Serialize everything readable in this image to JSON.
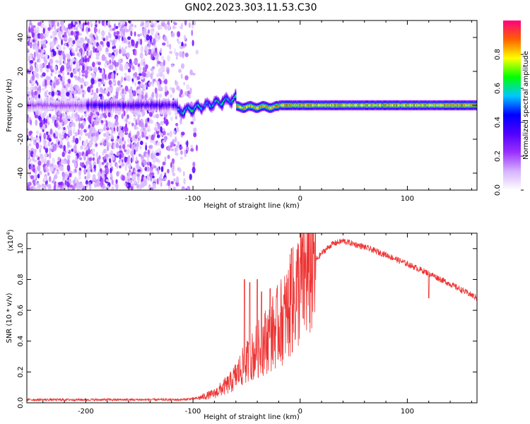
{
  "title": "GN02.2023.303.11.53.C30",
  "chart_data": [
    {
      "type": "heatmap",
      "xlabel": "Height of straight line (km)",
      "ylabel": "Frequency (Hz)",
      "xlim": [
        -255,
        165
      ],
      "ylim": [
        -50,
        50
      ],
      "xticks": [
        -200,
        -100,
        0,
        100
      ],
      "yticks": [
        -40,
        -20,
        0,
        20,
        40
      ],
      "colorbar": {
        "label": "Normalized spectral amplitude",
        "range": [
          0,
          1
        ],
        "ticks": [
          0.0,
          0.2,
          0.4,
          0.6,
          0.8
        ],
        "colormap": [
          "#ffffff",
          "#d6b3ff",
          "#9b30ff",
          "#5000ff",
          "#0000ff",
          "#00c8ff",
          "#00ff00",
          "#ffff00",
          "#ff6000",
          "#ff0080"
        ]
      },
      "signal": {
        "noise_region_x": [
          -255,
          -105
        ],
        "carrier_freq": 0,
        "transition_x": [
          -115,
          -60
        ],
        "transition_peak_freq": 4,
        "clean_region_x": [
          -60,
          165
        ],
        "clean_halfwidth_freq": 3
      },
      "grid": false
    },
    {
      "type": "line",
      "xlabel": "Height of straight line (km)",
      "ylabel": "SNR (10 * v/v)",
      "yscale_label": "(x10",
      "yscale_exp": "4",
      "yscale_close": ")",
      "xlim": [
        -255,
        165
      ],
      "ylim": [
        0,
        1.1
      ],
      "xticks": [
        -200,
        -100,
        0,
        100
      ],
      "yticks": [
        0.0,
        0.2,
        0.4,
        0.6,
        0.8,
        1.0
      ],
      "color": "#ee3333",
      "envelope": {
        "x": [
          -255,
          -200,
          -110,
          -95,
          -80,
          -65,
          -55,
          -45,
          -35,
          -25,
          -15,
          -5,
          0,
          10,
          20,
          30,
          40,
          60,
          80,
          100,
          120,
          140,
          165
        ],
        "y": [
          0.02,
          0.02,
          0.02,
          0.03,
          0.06,
          0.13,
          0.22,
          0.3,
          0.38,
          0.46,
          0.55,
          0.68,
          0.78,
          0.88,
          0.97,
          1.03,
          1.05,
          1.01,
          0.96,
          0.9,
          0.84,
          0.77,
          0.68
        ]
      },
      "spikes": [
        {
          "x": -52,
          "y": 0.8
        },
        {
          "x": -47,
          "y": 0.78
        },
        {
          "x": -40,
          "y": 0.8
        },
        {
          "x": -36,
          "y": 0.72
        },
        {
          "x": -28,
          "y": 0.74
        },
        {
          "x": -8,
          "y": 1.0
        },
        {
          "x": 120,
          "y": 0.68
        }
      ],
      "grid": false
    }
  ]
}
